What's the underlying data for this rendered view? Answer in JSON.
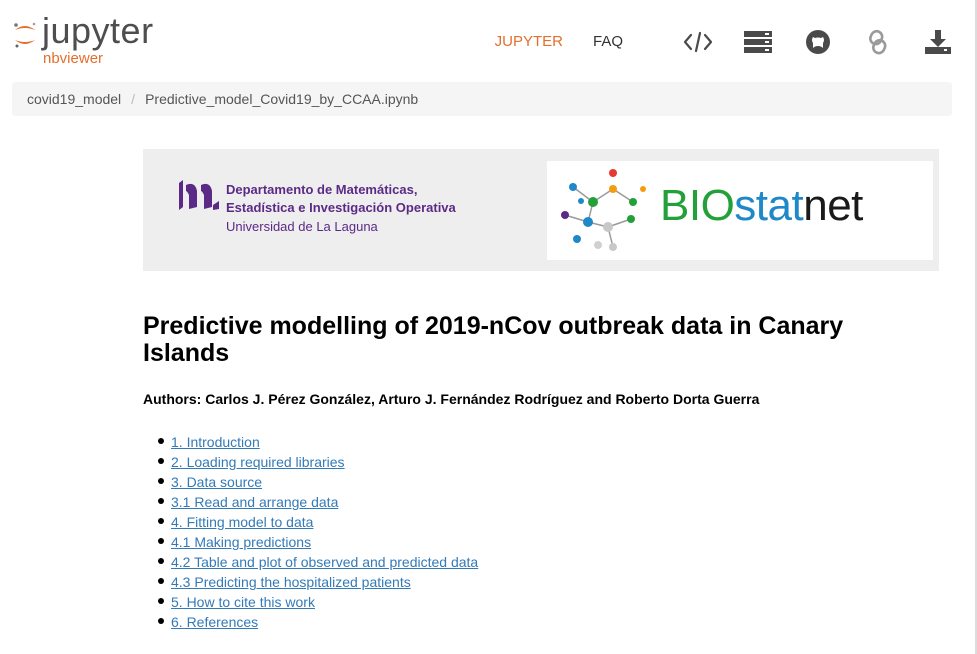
{
  "header": {
    "logo_word": "jupyter",
    "logo_sub": "nbviewer",
    "nav": {
      "jupyter_label": "JUPYTER",
      "faq_label": "FAQ",
      "icons": [
        "code-icon",
        "server-icon",
        "github-icon",
        "link-icon",
        "download-icon"
      ]
    }
  },
  "breadcrumb": {
    "items": [
      "covid19_model",
      "Predictive_model_Covid19_by_CCAA.ipynb"
    ],
    "separator": "/"
  },
  "banner": {
    "ull_line1": "Departamento de Matemáticas,",
    "ull_line2": "Estadística e Investigación Operativa",
    "ull_line3": "Universidad de La Laguna",
    "biostatnet_bio": "BIO",
    "biostatnet_stat": "stat",
    "biostatnet_net": "net"
  },
  "notebook": {
    "title": "Predictive modelling of 2019-nCov outbreak data in Canary Islands",
    "authors": "Authors: Carlos J. Pérez González, Arturo J. Fernández Rodríguez and Roberto Dorta Guerra",
    "toc": [
      "1. Introduction",
      "2. Loading required libraries",
      "3. Data source",
      "3.1 Read and arrange data",
      "4. Fitting model to data",
      "4.1 Making predictions",
      "4.2 Table and plot of observed and predicted data",
      "4.3 Predicting the hospitalized patients",
      "5. How to cite this work",
      "6. References"
    ]
  },
  "colors": {
    "accent": "#e46e2e",
    "link": "#337ab7",
    "ull_purple": "#5b2a86",
    "biostatnet_green": "#23a03a",
    "biostatnet_blue": "#1e88c8"
  }
}
